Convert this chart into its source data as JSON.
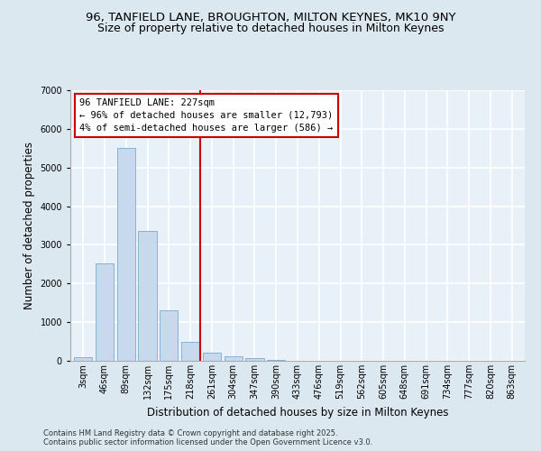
{
  "title_line1": "96, TANFIELD LANE, BROUGHTON, MILTON KEYNES, MK10 9NY",
  "title_line2": "Size of property relative to detached houses in Milton Keynes",
  "xlabel": "Distribution of detached houses by size in Milton Keynes",
  "ylabel": "Number of detached properties",
  "categories": [
    "3sqm",
    "46sqm",
    "89sqm",
    "132sqm",
    "175sqm",
    "218sqm",
    "261sqm",
    "304sqm",
    "347sqm",
    "390sqm",
    "433sqm",
    "476sqm",
    "519sqm",
    "562sqm",
    "605sqm",
    "648sqm",
    "691sqm",
    "734sqm",
    "777sqm",
    "820sqm",
    "863sqm"
  ],
  "values": [
    100,
    2520,
    5500,
    3350,
    1300,
    500,
    220,
    110,
    60,
    30,
    10,
    5,
    3,
    2,
    1,
    1,
    0,
    0,
    0,
    0,
    0
  ],
  "bar_color": "#c8d8ed",
  "bar_edge_color": "#7aaad0",
  "property_line_x": 5.45,
  "annotation_title": "96 TANFIELD LANE: 227sqm",
  "annotation_line2": "← 96% of detached houses are smaller (12,793)",
  "annotation_line3": "4% of semi-detached houses are larger (586) →",
  "annotation_box_facecolor": "#ffffff",
  "annotation_box_edge_color": "#cc0000",
  "vline_color": "#cc0000",
  "ylim": [
    0,
    7000
  ],
  "yticks": [
    0,
    1000,
    2000,
    3000,
    4000,
    5000,
    6000,
    7000
  ],
  "bg_color": "#dce8f0",
  "plot_bg_color": "#e8f0f8",
  "grid_color": "#ffffff",
  "footer_line1": "Contains HM Land Registry data © Crown copyright and database right 2025.",
  "footer_line2": "Contains public sector information licensed under the Open Government Licence v3.0.",
  "title_fontsize": 9.5,
  "subtitle_fontsize": 9,
  "ylabel_fontsize": 8.5,
  "xlabel_fontsize": 8.5,
  "tick_fontsize": 7,
  "annotation_fontsize": 7.5,
  "footer_fontsize": 6
}
